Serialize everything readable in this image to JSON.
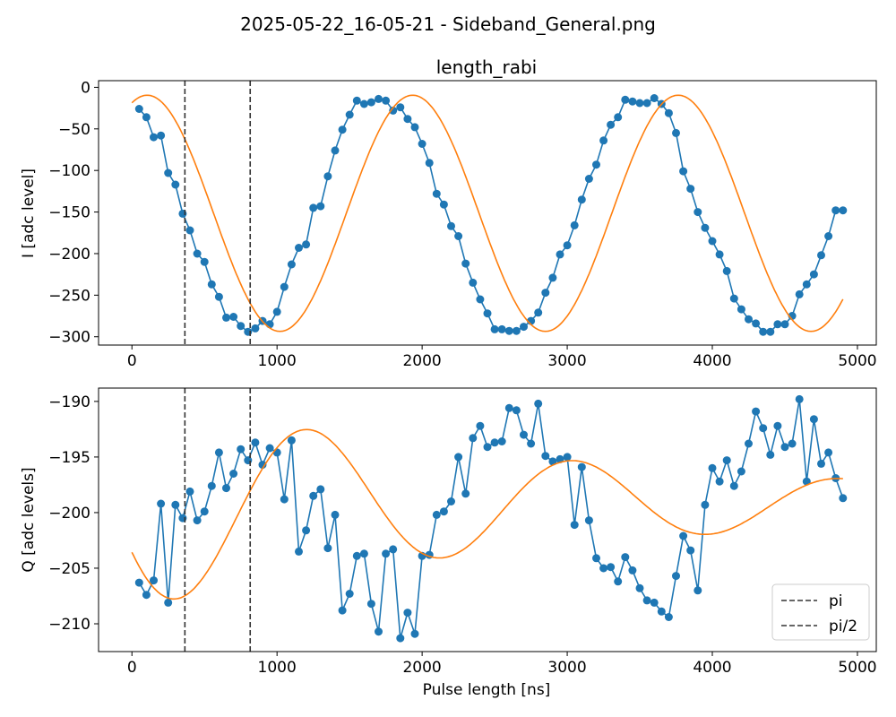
{
  "figure": {
    "suptitle": "2025-05-22_16-05-21 - Sideband_General.png"
  },
  "colors": {
    "data": "#1f77b4",
    "fit": "#ff7f0e",
    "marker_line": "#333333"
  },
  "chart_data": [
    {
      "type": "line",
      "title": "length_rabi",
      "xlabel": "",
      "ylabel": "I [adc level]",
      "xlim": [
        -230,
        5130
      ],
      "ylim": [
        -310,
        8
      ],
      "xticks": [
        0,
        1000,
        2000,
        3000,
        4000,
        5000
      ],
      "yticks": [
        0,
        -50,
        -100,
        -150,
        -200,
        -250,
        -300
      ],
      "vlines": [
        365,
        815
      ],
      "series": [
        {
          "style": "markers+line",
          "color": "#1f77b4",
          "x": [
            50,
            100,
            150,
            200,
            250,
            300,
            350,
            400,
            450,
            500,
            550,
            600,
            650,
            700,
            750,
            800,
            850,
            900,
            950,
            1000,
            1050,
            1100,
            1150,
            1200,
            1250,
            1300,
            1350,
            1400,
            1450,
            1500,
            1550,
            1600,
            1650,
            1700,
            1750,
            1800,
            1850,
            1900,
            1950,
            2000,
            2050,
            2100,
            2150,
            2200,
            2250,
            2300,
            2350,
            2400,
            2450,
            2500,
            2550,
            2600,
            2650,
            2700,
            2750,
            2800,
            2850,
            2900,
            2950,
            3000,
            3050,
            3100,
            3150,
            3200,
            3250,
            3300,
            3350,
            3400,
            3450,
            3500,
            3550,
            3600,
            3650,
            3700,
            3750,
            3800,
            3850,
            3900,
            3950,
            4000,
            4050,
            4100,
            4150,
            4200,
            4250,
            4300,
            4350,
            4400,
            4450,
            4500,
            4550,
            4600,
            4650,
            4700,
            4750,
            4800,
            4850,
            4900
          ],
          "y": [
            -26,
            -36,
            -60,
            -58,
            -103,
            -117,
            -152,
            -172,
            -200,
            -210,
            -237,
            -252,
            -277,
            -276,
            -287,
            -294,
            -290,
            -281,
            -285,
            -270,
            -240,
            -213,
            -193,
            -189,
            -145,
            -143,
            -107,
            -76,
            -51,
            -33,
            -16,
            -20,
            -18,
            -14,
            -16,
            -28,
            -24,
            -38,
            -48,
            -68,
            -91,
            -128,
            -141,
            -167,
            -179,
            -212,
            -235,
            -255,
            -272,
            -291,
            -291,
            -293,
            -293,
            -288,
            -281,
            -271,
            -247,
            -229,
            -201,
            -190,
            -166,
            -135,
            -110,
            -93,
            -64,
            -45,
            -36,
            -15,
            -17,
            -19,
            -19,
            -13,
            -20,
            -31,
            -55,
            -101,
            -122,
            -150,
            -169,
            -185,
            -201,
            -221,
            -254,
            -267,
            -279,
            -284,
            -294,
            -294,
            -285,
            -285,
            -275,
            -249,
            -237,
            -225,
            -202,
            -179,
            -148,
            -148
          ]
        },
        {
          "style": "line",
          "color": "#ff7f0e",
          "fit": {
            "offset": -151.5,
            "amplitude": 142,
            "period": 1830,
            "phase_x0": -1725
          }
        }
      ]
    },
    {
      "type": "line",
      "title": "",
      "xlabel": "Pulse length [ns]",
      "ylabel": "Q [adc levels]",
      "xlim": [
        -230,
        5130
      ],
      "ylim": [
        -212.5,
        -188.8
      ],
      "xticks": [
        0,
        1000,
        2000,
        3000,
        4000,
        5000
      ],
      "yticks": [
        -190,
        -195,
        -200,
        -205,
        -210
      ],
      "vlines": [
        365,
        815
      ],
      "legend": {
        "position": "lower-right",
        "entries": [
          "pi",
          "pi/2"
        ]
      },
      "series": [
        {
          "style": "markers+line",
          "color": "#1f77b4",
          "x": [
            50,
            100,
            150,
            200,
            250,
            300,
            350,
            400,
            450,
            500,
            550,
            600,
            650,
            700,
            750,
            800,
            850,
            900,
            950,
            1000,
            1050,
            1100,
            1150,
            1200,
            1250,
            1300,
            1350,
            1400,
            1450,
            1500,
            1550,
            1600,
            1650,
            1700,
            1750,
            1800,
            1850,
            1900,
            1950,
            2000,
            2050,
            2100,
            2150,
            2200,
            2250,
            2300,
            2350,
            2400,
            2450,
            2500,
            2550,
            2600,
            2650,
            2700,
            2750,
            2800,
            2850,
            2900,
            2950,
            3000,
            3050,
            3100,
            3150,
            3200,
            3250,
            3300,
            3350,
            3400,
            3450,
            3500,
            3550,
            3600,
            3650,
            3700,
            3750,
            3800,
            3850,
            3900,
            3950,
            4000,
            4050,
            4100,
            4150,
            4200,
            4250,
            4300,
            4350,
            4400,
            4450,
            4500,
            4550,
            4600,
            4650,
            4700,
            4750,
            4800,
            4850,
            4900
          ],
          "y": [
            -206.3,
            -207.4,
            -206.1,
            -199.2,
            -208.1,
            -199.3,
            -200.5,
            -198.1,
            -200.7,
            -199.9,
            -197.6,
            -194.6,
            -197.8,
            -196.5,
            -194.3,
            -195.3,
            -193.7,
            -195.7,
            -194.2,
            -194.6,
            -198.8,
            -193.5,
            -203.5,
            -201.6,
            -198.5,
            -197.9,
            -203.2,
            -200.2,
            -208.8,
            -207.3,
            -203.9,
            -203.7,
            -208.2,
            -210.7,
            -203.7,
            -203.3,
            -211.3,
            -209.0,
            -210.9,
            -203.9,
            -203.8,
            -200.2,
            -199.9,
            -199.0,
            -195.0,
            -198.3,
            -193.3,
            -192.2,
            -194.1,
            -193.7,
            -193.6,
            -190.6,
            -190.8,
            -193.0,
            -193.8,
            -190.2,
            -194.9,
            -195.4,
            -195.2,
            -195.0,
            -201.1,
            -195.9,
            -200.7,
            -204.1,
            -205.0,
            -204.9,
            -206.2,
            -204.0,
            -205.2,
            -206.8,
            -207.9,
            -208.1,
            -208.9,
            -209.4,
            -205.7,
            -202.1,
            -203.4,
            -207.0,
            -199.3,
            -196.0,
            -197.2,
            -195.3,
            -197.6,
            -196.3,
            -193.8,
            -190.9,
            -192.4,
            -194.8,
            -192.2,
            -194.1,
            -193.8,
            -189.8,
            -197.2,
            -191.6,
            -195.6,
            -194.6,
            -196.9,
            -198.7
          ]
        },
        {
          "style": "line",
          "color": "#ff7f0e",
          "fit": {
            "offset": -199.1,
            "amplitude": 9.5,
            "decay": 3300,
            "period": 1830,
            "phase_x0": -600
          }
        }
      ]
    }
  ]
}
